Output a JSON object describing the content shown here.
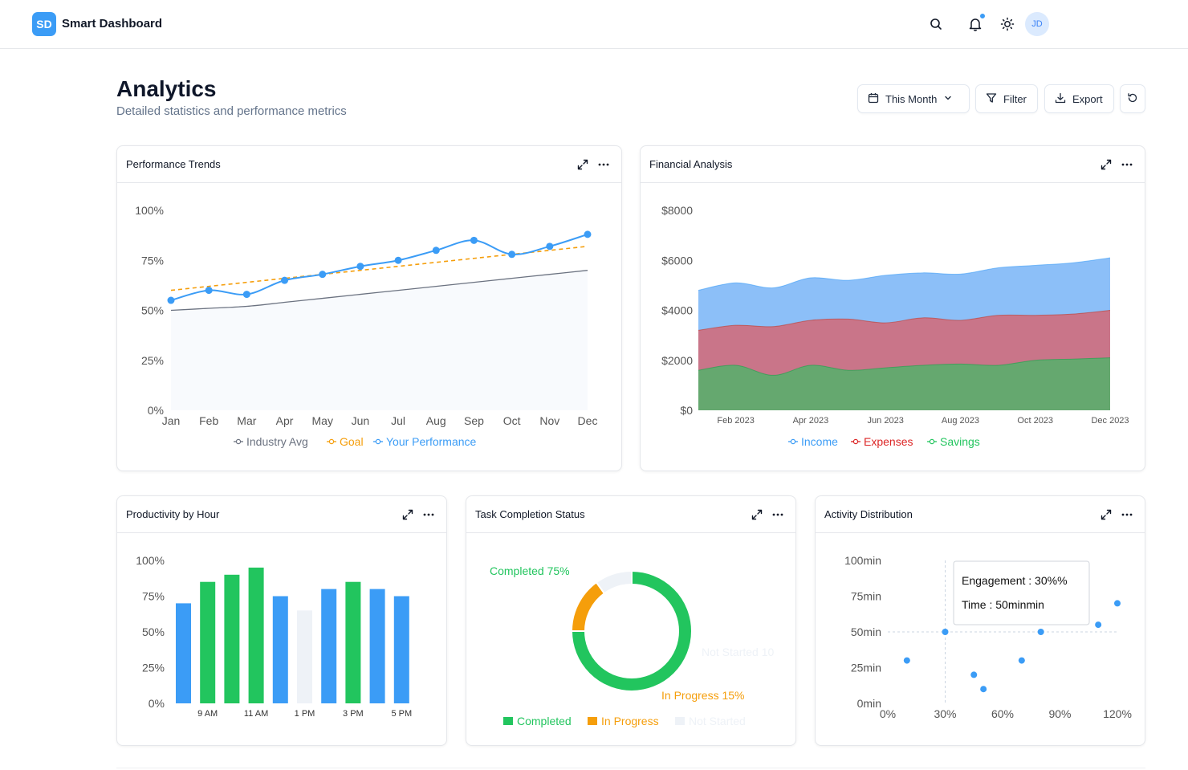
{
  "header": {
    "logo_text": "SD",
    "app_title": "Smart Dashboard",
    "avatar_initials": "JD",
    "icons": [
      "search-icon",
      "bell-icon",
      "sun-icon"
    ]
  },
  "page": {
    "title": "Analytics",
    "subtitle": "Detailed statistics and performance metrics"
  },
  "toolbar": {
    "date_range_label": "This Month",
    "filter_label": "Filter",
    "export_label": "Export"
  },
  "colors": {
    "accent": "#3b9cf6",
    "green": "#22c55e",
    "orange": "#f59e0b",
    "red": "#c0392b",
    "gray": "#6b7280"
  },
  "cards": {
    "performance": {
      "title": "Performance Trends"
    },
    "financial": {
      "title": "Financial Analysis"
    },
    "productivity": {
      "title": "Productivity by Hour"
    },
    "tasks": {
      "title": "Task Completion Status"
    },
    "activity": {
      "title": "Activity Distribution"
    }
  },
  "chart_data": [
    {
      "id": "performance",
      "type": "line",
      "title": "Performance Trends",
      "categories": [
        "Jan",
        "Feb",
        "Mar",
        "Apr",
        "May",
        "Jun",
        "Jul",
        "Aug",
        "Sep",
        "Oct",
        "Nov",
        "Dec"
      ],
      "y_ticks": [
        "0%",
        "25%",
        "50%",
        "75%",
        "100%"
      ],
      "ylim": [
        0,
        100
      ],
      "series": [
        {
          "name": "Industry Avg",
          "values": [
            50,
            51,
            52,
            54,
            56,
            58,
            60,
            62,
            64,
            66,
            68,
            70
          ]
        },
        {
          "name": "Goal",
          "values": [
            60,
            62,
            64,
            66,
            68,
            70,
            72,
            74,
            76,
            78,
            80,
            82
          ]
        },
        {
          "name": "Your Performance",
          "values": [
            55,
            60,
            58,
            65,
            68,
            72,
            75,
            80,
            85,
            78,
            82,
            88
          ]
        }
      ]
    },
    {
      "id": "financial",
      "type": "area",
      "title": "Financial Analysis",
      "x_ticks": [
        "Feb 2023",
        "Apr 2023",
        "Jun 2023",
        "Aug 2023",
        "Oct 2023",
        "Dec 2023"
      ],
      "y_ticks": [
        "$0",
        "$2000",
        "$4000",
        "$6000",
        "$8000"
      ],
      "ylim": [
        0,
        8000
      ],
      "months": 12,
      "series": [
        {
          "name": "Income",
          "values": [
            4800,
            5100,
            4900,
            5300,
            5200,
            5400,
            5500,
            5450,
            5700,
            5800,
            5900,
            6100
          ]
        },
        {
          "name": "Expenses",
          "values": [
            3200,
            3400,
            3350,
            3600,
            3650,
            3500,
            3700,
            3600,
            3800,
            3800,
            3850,
            4000
          ]
        },
        {
          "name": "Savings",
          "values": [
            1600,
            1800,
            1400,
            1800,
            1600,
            1700,
            1800,
            1850,
            1800,
            2000,
            2050,
            2100
          ]
        }
      ]
    },
    {
      "id": "productivity",
      "type": "bar",
      "title": "Productivity by Hour",
      "x_ticks": [
        "9 AM",
        "11 AM",
        "1 PM",
        "3 PM",
        "5 PM"
      ],
      "y_ticks": [
        "0%",
        "25%",
        "50%",
        "75%",
        "100%"
      ],
      "ylim": [
        0,
        100
      ],
      "values": [
        70,
        85,
        90,
        95,
        75,
        65,
        80,
        85,
        80,
        75
      ],
      "bar_colors": [
        "#3b9cf6",
        "#22c55e",
        "#22c55e",
        "#22c55e",
        "#3b9cf6",
        "#eef2f7",
        "#3b9cf6",
        "#22c55e",
        "#3b9cf6",
        "#3b9cf6"
      ]
    },
    {
      "id": "tasks",
      "type": "pie",
      "title": "Task Completion Status",
      "slices": [
        {
          "name": "Completed",
          "value": 75,
          "label": "Completed 75%",
          "color": "#22c55e"
        },
        {
          "name": "In Progress",
          "value": 15,
          "label": "In Progress 15%",
          "color": "#f59e0b"
        },
        {
          "name": "Not Started",
          "value": 10,
          "label": "Not Started 10",
          "color": "#eef2f7"
        }
      ]
    },
    {
      "id": "activity",
      "type": "scatter",
      "title": "Activity Distribution",
      "x_ticks": [
        "0%",
        "30%",
        "60%",
        "90%",
        "120%"
      ],
      "y_ticks": [
        "0min",
        "25min",
        "50min",
        "75min",
        "100min"
      ],
      "xlim": [
        0,
        120
      ],
      "ylim": [
        0,
        100
      ],
      "points": [
        [
          10,
          30
        ],
        [
          30,
          50
        ],
        [
          45,
          20
        ],
        [
          50,
          10
        ],
        [
          70,
          30
        ],
        [
          80,
          50
        ],
        [
          110,
          55
        ],
        [
          120,
          70
        ]
      ],
      "tooltip": {
        "line1": "Engagement : 30%%",
        "line2": "Time : 50minmin"
      }
    }
  ]
}
